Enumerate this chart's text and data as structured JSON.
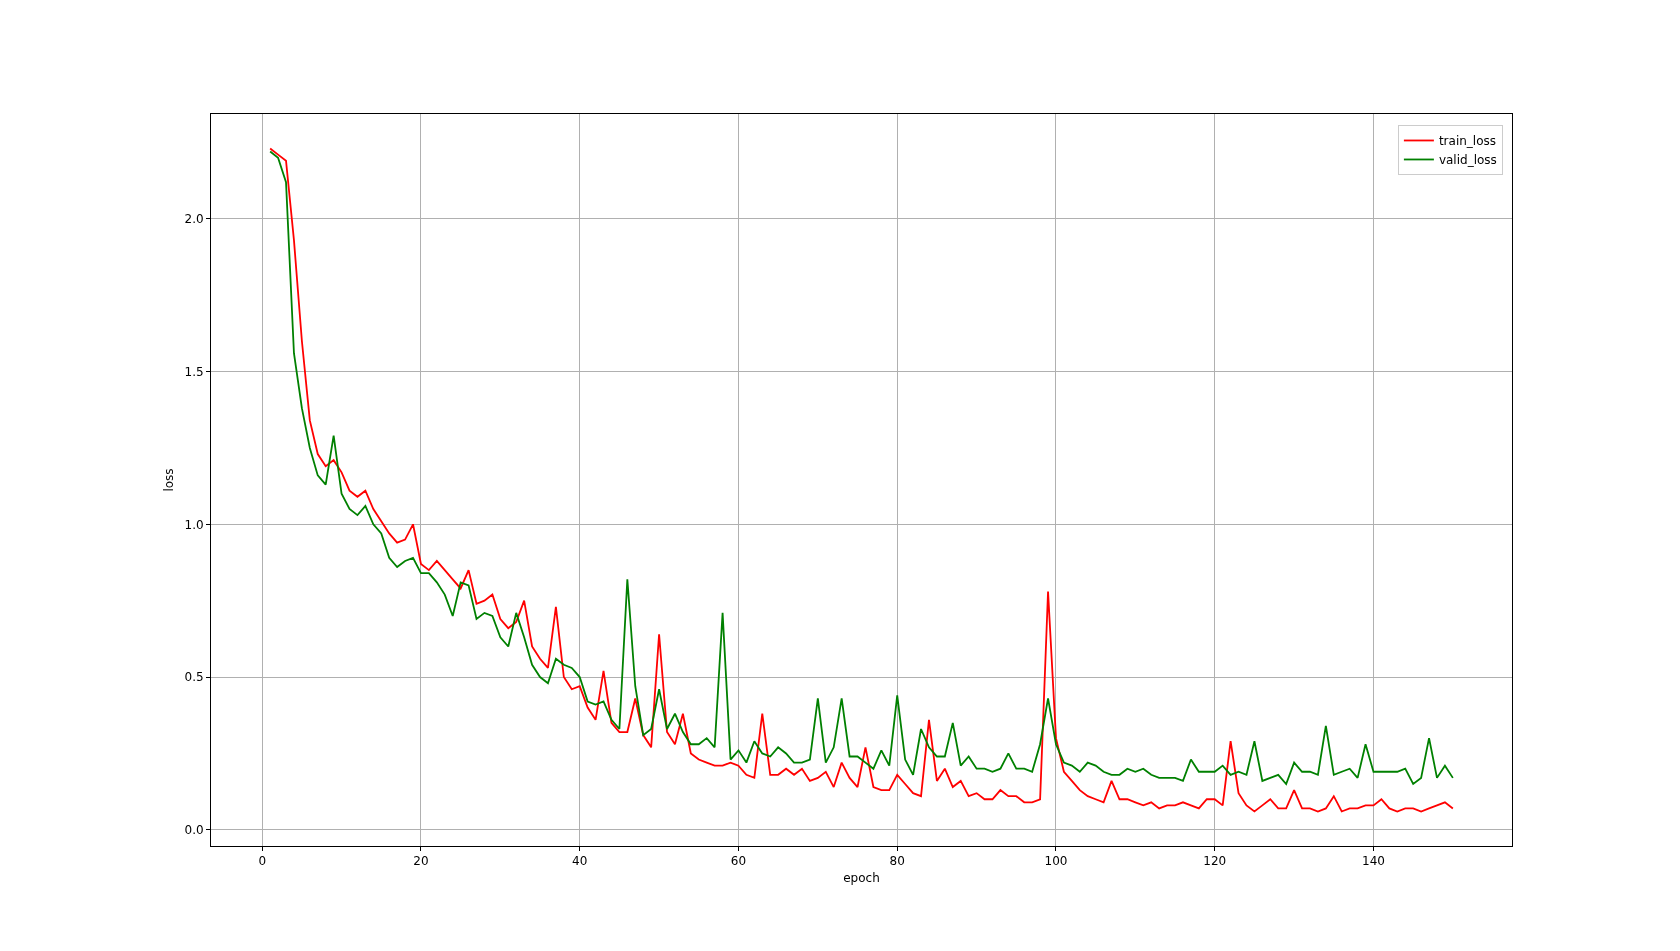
{
  "chart_data": {
    "type": "line",
    "xlabel": "epoch",
    "ylabel": "loss",
    "x": [
      1,
      2,
      3,
      4,
      5,
      6,
      7,
      8,
      9,
      10,
      11,
      12,
      13,
      14,
      15,
      16,
      17,
      18,
      19,
      20,
      21,
      22,
      23,
      24,
      25,
      26,
      27,
      28,
      29,
      30,
      31,
      32,
      33,
      34,
      35,
      36,
      37,
      38,
      39,
      40,
      41,
      42,
      43,
      44,
      45,
      46,
      47,
      48,
      49,
      50,
      51,
      52,
      53,
      54,
      55,
      56,
      57,
      58,
      59,
      60,
      61,
      62,
      63,
      64,
      65,
      66,
      67,
      68,
      69,
      70,
      71,
      72,
      73,
      74,
      75,
      76,
      77,
      78,
      79,
      80,
      81,
      82,
      83,
      84,
      85,
      86,
      87,
      88,
      89,
      90,
      91,
      92,
      93,
      94,
      95,
      96,
      97,
      98,
      99,
      100,
      101,
      102,
      103,
      104,
      105,
      106,
      107,
      108,
      109,
      110,
      111,
      112,
      113,
      114,
      115,
      116,
      117,
      118,
      119,
      120,
      121,
      122,
      123,
      124,
      125,
      126,
      127,
      128,
      129,
      130,
      131,
      132,
      133,
      134,
      135,
      136,
      137,
      138,
      139,
      140,
      141,
      142,
      143,
      144,
      145,
      146,
      147,
      148,
      149,
      150
    ],
    "series": [
      {
        "name": "train_loss",
        "color": "#ff0000",
        "values": [
          2.23,
          2.21,
          2.19,
          1.93,
          1.6,
          1.34,
          1.23,
          1.19,
          1.21,
          1.17,
          1.11,
          1.09,
          1.11,
          1.05,
          1.01,
          0.97,
          0.94,
          0.95,
          1.0,
          0.87,
          0.85,
          0.88,
          0.85,
          0.82,
          0.79,
          0.85,
          0.74,
          0.75,
          0.77,
          0.69,
          0.66,
          0.68,
          0.75,
          0.6,
          0.56,
          0.53,
          0.73,
          0.5,
          0.46,
          0.47,
          0.4,
          0.36,
          0.52,
          0.35,
          0.32,
          0.32,
          0.43,
          0.31,
          0.27,
          0.64,
          0.32,
          0.28,
          0.38,
          0.25,
          0.23,
          0.22,
          0.21,
          0.21,
          0.22,
          0.21,
          0.18,
          0.17,
          0.38,
          0.18,
          0.18,
          0.2,
          0.18,
          0.2,
          0.16,
          0.17,
          0.19,
          0.14,
          0.22,
          0.17,
          0.14,
          0.27,
          0.14,
          0.13,
          0.13,
          0.18,
          0.15,
          0.12,
          0.11,
          0.36,
          0.16,
          0.2,
          0.14,
          0.16,
          0.11,
          0.12,
          0.1,
          0.1,
          0.13,
          0.11,
          0.11,
          0.09,
          0.09,
          0.1,
          0.78,
          0.3,
          0.19,
          0.16,
          0.13,
          0.11,
          0.1,
          0.09,
          0.16,
          0.1,
          0.1,
          0.09,
          0.08,
          0.09,
          0.07,
          0.08,
          0.08,
          0.09,
          0.08,
          0.07,
          0.1,
          0.1,
          0.08,
          0.29,
          0.12,
          0.08,
          0.06,
          0.08,
          0.1,
          0.07,
          0.07,
          0.13,
          0.07,
          0.07,
          0.06,
          0.07,
          0.11,
          0.06,
          0.07,
          0.07,
          0.08,
          0.08,
          0.1,
          0.07,
          0.06,
          0.07,
          0.07,
          0.06,
          0.07,
          0.08,
          0.09,
          0.07
        ]
      },
      {
        "name": "valid_loss",
        "color": "#008000",
        "values": [
          2.22,
          2.2,
          2.12,
          1.56,
          1.38,
          1.25,
          1.16,
          1.13,
          1.29,
          1.1,
          1.05,
          1.03,
          1.06,
          1.0,
          0.97,
          0.89,
          0.86,
          0.88,
          0.89,
          0.84,
          0.84,
          0.81,
          0.77,
          0.7,
          0.81,
          0.8,
          0.69,
          0.71,
          0.7,
          0.63,
          0.6,
          0.71,
          0.63,
          0.54,
          0.5,
          0.48,
          0.56,
          0.54,
          0.53,
          0.5,
          0.42,
          0.41,
          0.42,
          0.36,
          0.33,
          0.82,
          0.47,
          0.31,
          0.33,
          0.46,
          0.33,
          0.38,
          0.32,
          0.28,
          0.28,
          0.3,
          0.27,
          0.71,
          0.23,
          0.26,
          0.22,
          0.29,
          0.25,
          0.24,
          0.27,
          0.25,
          0.22,
          0.22,
          0.23,
          0.43,
          0.22,
          0.27,
          0.43,
          0.24,
          0.24,
          0.22,
          0.2,
          0.26,
          0.21,
          0.44,
          0.23,
          0.18,
          0.33,
          0.27,
          0.24,
          0.24,
          0.35,
          0.21,
          0.24,
          0.2,
          0.2,
          0.19,
          0.2,
          0.25,
          0.2,
          0.2,
          0.19,
          0.28,
          0.43,
          0.28,
          0.22,
          0.21,
          0.19,
          0.22,
          0.21,
          0.19,
          0.18,
          0.18,
          0.2,
          0.19,
          0.2,
          0.18,
          0.17,
          0.17,
          0.17,
          0.16,
          0.23,
          0.19,
          0.19,
          0.19,
          0.21,
          0.18,
          0.19,
          0.18,
          0.29,
          0.16,
          0.17,
          0.18,
          0.15,
          0.22,
          0.19,
          0.19,
          0.18,
          0.34,
          0.18,
          0.19,
          0.2,
          0.17,
          0.28,
          0.19,
          0.19,
          0.19,
          0.19,
          0.2,
          0.15,
          0.17,
          0.3,
          0.17,
          0.21,
          0.17
        ]
      }
    ],
    "xlim": [
      -6.45,
      157.45
    ],
    "xticks": [
      0,
      20,
      40,
      60,
      80,
      100,
      120,
      140
    ],
    "ylim": [
      -0.053,
      2.343
    ],
    "yticks": [
      {
        "value": 0,
        "label": "0.0"
      },
      {
        "value": 0.5,
        "label": "0.5"
      },
      {
        "value": 1,
        "label": "1.0"
      },
      {
        "value": 1.5,
        "label": "1.5"
      },
      {
        "value": 2,
        "label": "2.0"
      }
    ],
    "grid": true,
    "legend": "top right",
    "marker": "none",
    "line_style": "solid"
  }
}
